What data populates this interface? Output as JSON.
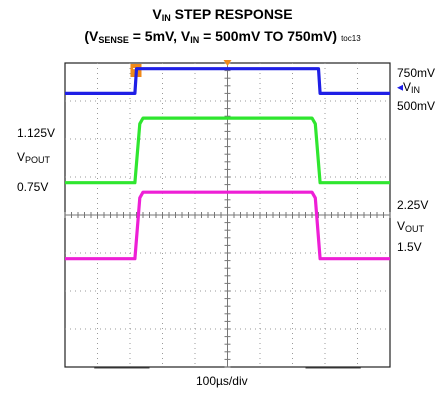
{
  "header": {
    "title_main": "V",
    "title_main_sub": "IN",
    "title_main_rest": " STEP RESPONSE",
    "subtitle_open": "(V",
    "subtitle_sub1": "SENSE",
    "subtitle_mid1": " = 5mV, V",
    "subtitle_sub2": "IN",
    "subtitle_rest": " = 500mV TO 750mV)",
    "figure_tag": "toc13"
  },
  "labels": {
    "left": {
      "v1125": "1.125V",
      "vpout": "V",
      "vpout_sub": "POUT",
      "v075": "0.75V"
    },
    "right": {
      "v750": "750mV",
      "vin": "V",
      "vin_sub": "IN",
      "v500": "500mV",
      "v225": "2.25V",
      "vout": "V",
      "vout_sub": "OUT",
      "v15": "1.5V"
    },
    "trigger_marker": "T"
  },
  "colors": {
    "vin": "#1f1fe6",
    "vpout": "#2fe62f",
    "vout": "#ee1fd6",
    "grid": "#9a9a9a",
    "trigger": "#f08a1a"
  },
  "chart_data": {
    "type": "line",
    "xlabel": "100µs/div",
    "ylabel": "",
    "x_unit": "div",
    "xlim": [
      0,
      10
    ],
    "ylim": [
      0,
      8
    ],
    "grid": true,
    "series": [
      {
        "name": "VIN",
        "x": [
          0,
          2.15,
          2.2,
          7.8,
          7.85,
          10
        ],
        "y": [
          7.2,
          7.2,
          7.85,
          7.85,
          7.2,
          7.2
        ]
      },
      {
        "name": "VPOUT",
        "x": [
          0,
          2.15,
          2.3,
          2.4,
          7.6,
          7.7,
          7.85,
          10
        ],
        "y": [
          4.85,
          4.85,
          6.4,
          6.55,
          6.55,
          6.4,
          4.85,
          4.85
        ]
      },
      {
        "name": "VOUT",
        "x": [
          0,
          2.15,
          2.3,
          2.4,
          7.6,
          7.7,
          7.85,
          10
        ],
        "y": [
          2.85,
          2.85,
          4.45,
          4.6,
          4.6,
          4.45,
          2.85,
          2.85
        ]
      }
    ]
  }
}
